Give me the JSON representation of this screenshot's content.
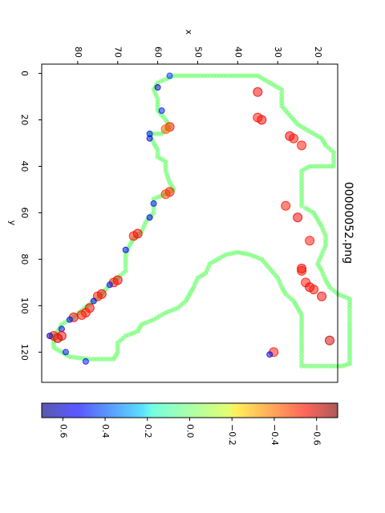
{
  "chart_data": {
    "type": "scatter",
    "title": "00000052.png",
    "xlabel": "x",
    "ylabel": "y",
    "xlim": [
      15,
      89
    ],
    "ylim": [
      -4,
      133
    ],
    "x_ticks": [
      20,
      30,
      40,
      50,
      60,
      70,
      80
    ],
    "y_ticks": [
      0,
      20,
      40,
      60,
      80,
      100,
      120
    ],
    "orientation": "rotated 90° clockwise",
    "grid": false,
    "colormap": "jet",
    "alpha": 0.5,
    "colorbar": {
      "range": [
        -0.7,
        0.7
      ],
      "ticks": [
        -0.6,
        -0.4,
        -0.2,
        0.0,
        0.2,
        0.4,
        0.6
      ],
      "tick_labels": [
        "−0.6",
        "−0.4",
        "−0.2",
        "0.0",
        "0.2",
        "0.4",
        "0.6"
      ]
    },
    "outline": [
      [
        35,
        1
      ],
      [
        46,
        1
      ],
      [
        56,
        1
      ],
      [
        60,
        4
      ],
      [
        61,
        7
      ],
      [
        60,
        11
      ],
      [
        60,
        16
      ],
      [
        58,
        20
      ],
      [
        57,
        23
      ],
      [
        59,
        26
      ],
      [
        62,
        26
      ],
      [
        61,
        30
      ],
      [
        60,
        33
      ],
      [
        60,
        36
      ],
      [
        58,
        38
      ],
      [
        58,
        42
      ],
      [
        57,
        47
      ],
      [
        56,
        50
      ],
      [
        58,
        52
      ],
      [
        61,
        54
      ],
      [
        61,
        57
      ],
      [
        61,
        60
      ],
      [
        63,
        64
      ],
      [
        64,
        68
      ],
      [
        66,
        71
      ],
      [
        67,
        74
      ],
      [
        68,
        78
      ],
      [
        68,
        82
      ],
      [
        68,
        85
      ],
      [
        70,
        88
      ],
      [
        72,
        91
      ],
      [
        74,
        95
      ],
      [
        76,
        98
      ],
      [
        79,
        102
      ],
      [
        81,
        105
      ],
      [
        84,
        108
      ],
      [
        85,
        111
      ],
      [
        86,
        113
      ],
      [
        86,
        118
      ],
      [
        84,
        120
      ],
      [
        82,
        122
      ],
      [
        77,
        123
      ],
      [
        71,
        123
      ],
      [
        70,
        120
      ],
      [
        70,
        116
      ],
      [
        68,
        113
      ],
      [
        65,
        111
      ],
      [
        64,
        108
      ],
      [
        61,
        106
      ],
      [
        58,
        103
      ],
      [
        55,
        101
      ],
      [
        53,
        98
      ],
      [
        52,
        95
      ],
      [
        51,
        92
      ],
      [
        50,
        88
      ],
      [
        48,
        86
      ],
      [
        47,
        82
      ],
      [
        45,
        80
      ],
      [
        43,
        78
      ],
      [
        40,
        77
      ],
      [
        37,
        78
      ],
      [
        34,
        80
      ],
      [
        32,
        84
      ],
      [
        30,
        88
      ],
      [
        29,
        92
      ],
      [
        28,
        95
      ],
      [
        26,
        98
      ],
      [
        25,
        101
      ],
      [
        24,
        104
      ],
      [
        24,
        108
      ],
      [
        24,
        112
      ],
      [
        24,
        116
      ],
      [
        24,
        120
      ],
      [
        24,
        126
      ],
      [
        18,
        126
      ],
      [
        14,
        126
      ],
      [
        12,
        125
      ],
      [
        12,
        121
      ],
      [
        12,
        116
      ],
      [
        12,
        111
      ],
      [
        12,
        107
      ],
      [
        12,
        101
      ],
      [
        12,
        97
      ],
      [
        15,
        95
      ],
      [
        17,
        92
      ],
      [
        18,
        89
      ],
      [
        19,
        85
      ],
      [
        20,
        82
      ],
      [
        19,
        78
      ],
      [
        18,
        74
      ],
      [
        18,
        70
      ],
      [
        19,
        66
      ],
      [
        20,
        63
      ],
      [
        21,
        60
      ],
      [
        23,
        58
      ],
      [
        24,
        57
      ],
      [
        24,
        53
      ],
      [
        24,
        49
      ],
      [
        24,
        45
      ],
      [
        24,
        42
      ],
      [
        22,
        40
      ],
      [
        19,
        40
      ],
      [
        16,
        40
      ],
      [
        16,
        37
      ],
      [
        16,
        34
      ],
      [
        18,
        31
      ],
      [
        19,
        28
      ],
      [
        21,
        26
      ],
      [
        23,
        24
      ],
      [
        25,
        22
      ],
      [
        26,
        20
      ],
      [
        27,
        18
      ],
      [
        28,
        16
      ],
      [
        29,
        14
      ],
      [
        29,
        10
      ],
      [
        29,
        7
      ],
      [
        31,
        5
      ],
      [
        33,
        3
      ],
      [
        35,
        1
      ]
    ],
    "values": [
      {
        "x": 57,
        "y": 1,
        "v": -0.45
      },
      {
        "x": 60,
        "y": 6,
        "v": -0.6
      },
      {
        "x": 59,
        "y": 16,
        "v": -0.5
      },
      {
        "x": 57,
        "y": 23,
        "v": 0.5
      },
      {
        "x": 58,
        "y": 24,
        "v": 0.4
      },
      {
        "x": 62,
        "y": 26,
        "v": -0.5
      },
      {
        "x": 62,
        "y": 28,
        "v": -0.55
      },
      {
        "x": 57,
        "y": 51,
        "v": 0.5
      },
      {
        "x": 58,
        "y": 52,
        "v": 0.45
      },
      {
        "x": 61,
        "y": 56,
        "v": -0.5
      },
      {
        "x": 62,
        "y": 62,
        "v": -0.55
      },
      {
        "x": 65,
        "y": 69,
        "v": 0.55
      },
      {
        "x": 66,
        "y": 70,
        "v": 0.5
      },
      {
        "x": 68,
        "y": 76,
        "v": -0.55
      },
      {
        "x": 70,
        "y": 89,
        "v": 0.55
      },
      {
        "x": 71,
        "y": 90,
        "v": 0.5
      },
      {
        "x": 72,
        "y": 91,
        "v": -0.5
      },
      {
        "x": 74,
        "y": 95,
        "v": 0.55
      },
      {
        "x": 75,
        "y": 96,
        "v": 0.5
      },
      {
        "x": 76,
        "y": 98,
        "v": -0.55
      },
      {
        "x": 77,
        "y": 101,
        "v": 0.55
      },
      {
        "x": 78,
        "y": 103,
        "v": 0.5
      },
      {
        "x": 79,
        "y": 104,
        "v": 0.5
      },
      {
        "x": 81,
        "y": 105,
        "v": 0.55
      },
      {
        "x": 82,
        "y": 106,
        "v": -0.5
      },
      {
        "x": 84,
        "y": 110,
        "v": -0.55
      },
      {
        "x": 84,
        "y": 113,
        "v": 0.55
      },
      {
        "x": 85,
        "y": 114,
        "v": 0.6
      },
      {
        "x": 86,
        "y": 113,
        "v": 0.5
      },
      {
        "x": 87,
        "y": 113,
        "v": -0.6
      },
      {
        "x": 83,
        "y": 120,
        "v": -0.5
      },
      {
        "x": 78,
        "y": 124,
        "v": -0.5
      },
      {
        "x": 35,
        "y": 8,
        "v": 0.55
      },
      {
        "x": 34,
        "y": 20,
        "v": 0.55
      },
      {
        "x": 35,
        "y": 19,
        "v": 0.5
      },
      {
        "x": 27,
        "y": 27,
        "v": 0.55
      },
      {
        "x": 26,
        "y": 28,
        "v": 0.5
      },
      {
        "x": 24,
        "y": 31,
        "v": 0.5
      },
      {
        "x": 28,
        "y": 57,
        "v": 0.5
      },
      {
        "x": 25,
        "y": 62,
        "v": 0.55
      },
      {
        "x": 22,
        "y": 72,
        "v": 0.5
      },
      {
        "x": 24,
        "y": 84,
        "v": 0.55
      },
      {
        "x": 24,
        "y": 85,
        "v": 0.5
      },
      {
        "x": 23,
        "y": 90,
        "v": 0.5
      },
      {
        "x": 22,
        "y": 92,
        "v": 0.55
      },
      {
        "x": 21,
        "y": 93,
        "v": 0.5
      },
      {
        "x": 19,
        "y": 96,
        "v": 0.55
      },
      {
        "x": 17,
        "y": 115,
        "v": 0.6
      },
      {
        "x": 31,
        "y": 120,
        "v": 0.5
      },
      {
        "x": 32,
        "y": 121,
        "v": -0.55
      }
    ]
  }
}
